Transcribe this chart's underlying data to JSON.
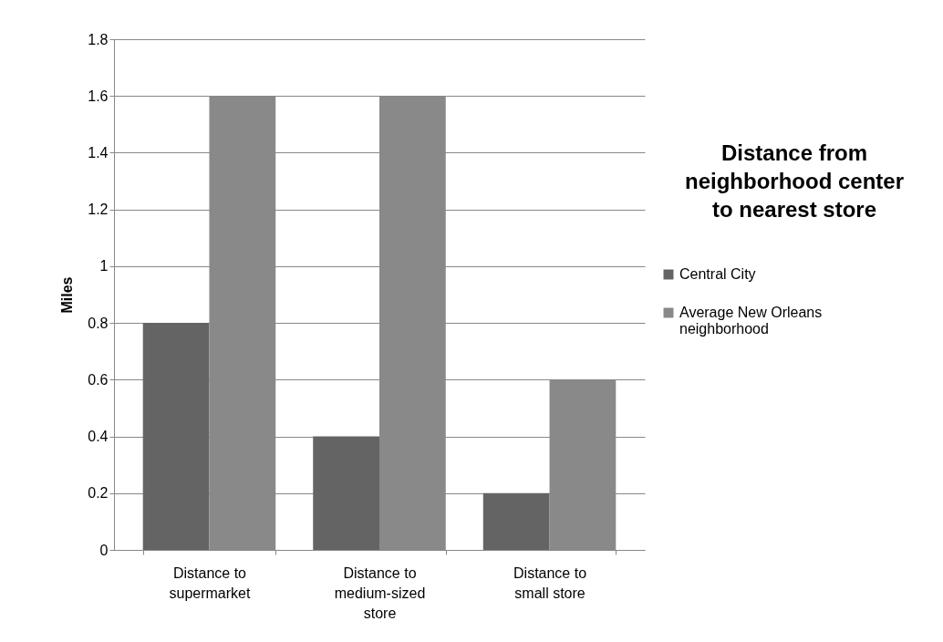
{
  "chart_data": {
    "type": "bar",
    "title": "Distance from neighborhood center to nearest store",
    "ylabel": "Miles",
    "categories": [
      "Distance to supermarket",
      "Distance to medium-sized store",
      "Distance to small store"
    ],
    "series": [
      {
        "name": "Central City",
        "color": "#646464",
        "values": [
          0.8,
          0.4,
          0.2
        ]
      },
      {
        "name": "Average New Orleans neighborhood",
        "color": "#898989",
        "values": [
          1.6,
          1.6,
          0.6
        ]
      }
    ],
    "ylim": [
      0,
      1.8
    ],
    "yticks": [
      0,
      0.2,
      0.4,
      0.6,
      0.8,
      1,
      1.2,
      1.4,
      1.6,
      1.8
    ],
    "grid": "y",
    "legend": "right"
  }
}
